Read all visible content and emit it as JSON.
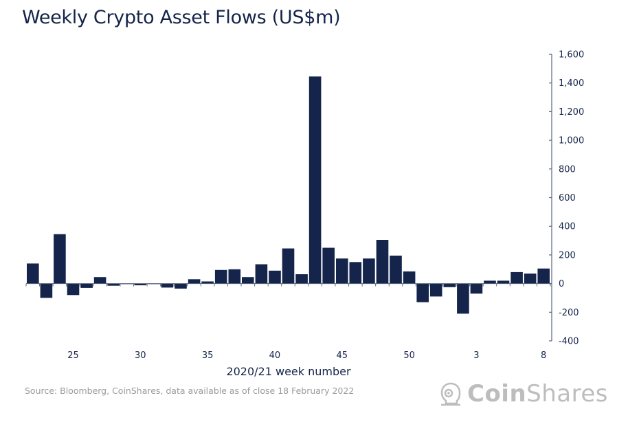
{
  "chart_data": {
    "type": "bar",
    "title": "Weekly Crypto Asset Flows (US$m)",
    "xlabel": "2020/21 week number",
    "ylabel": "",
    "ylim": [
      -400,
      1600
    ],
    "y_ticks": [
      -400,
      -200,
      0,
      200,
      400,
      600,
      800,
      1000,
      1200,
      1400,
      1600
    ],
    "y_tick_labels": [
      "-400",
      "-200",
      "0",
      "200",
      "400",
      "600",
      "800",
      "1,000",
      "1,200",
      "1,400",
      "1,600"
    ],
    "y_axis_side": "right",
    "grid": false,
    "categories": [
      "22",
      "23",
      "24",
      "25",
      "26",
      "27",
      "28",
      "29",
      "30",
      "31",
      "32",
      "33",
      "34",
      "35",
      "36",
      "37",
      "38",
      "39",
      "40",
      "41",
      "42",
      "43",
      "44",
      "45",
      "46",
      "47",
      "48",
      "49",
      "50",
      "51",
      "52",
      "1",
      "2",
      "3",
      "4",
      "5",
      "6",
      "7",
      "8"
    ],
    "x_tick_labels": [
      {
        "category": "25",
        "label": "25"
      },
      {
        "category": "30",
        "label": "30"
      },
      {
        "category": "35",
        "label": "35"
      },
      {
        "category": "40",
        "label": "40"
      },
      {
        "category": "45",
        "label": "45"
      },
      {
        "category": "50",
        "label": "50"
      },
      {
        "category": "3",
        "label": "3"
      },
      {
        "category": "8",
        "label": "8"
      }
    ],
    "values": [
      140,
      -100,
      345,
      -80,
      -30,
      45,
      -15,
      -3,
      -12,
      -3,
      -28,
      -35,
      30,
      15,
      95,
      100,
      45,
      135,
      90,
      245,
      65,
      1445,
      250,
      175,
      150,
      175,
      305,
      195,
      85,
      -130,
      -90,
      -25,
      -210,
      -70,
      20,
      20,
      80,
      70,
      105
    ],
    "bar_color": "#14244a"
  },
  "footer": {
    "source": "Source: Bloomberg, CoinShares, data available as of close 18 February 2022",
    "logo_bold": "Coin",
    "logo_light": "Shares",
    "logo_icon": "astronaut-helmet-icon"
  }
}
